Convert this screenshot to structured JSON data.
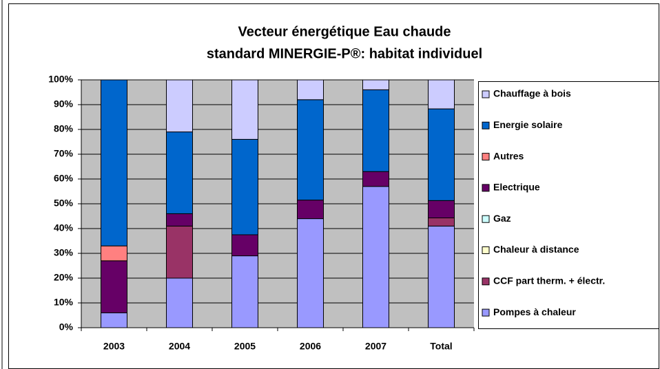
{
  "chart_data": {
    "type": "stacked_bar",
    "title": [
      "Vecteur énergétique Eau chaude",
      "standard MINERGIE-P®: habitat individuel"
    ],
    "categories": [
      "2003",
      "2004",
      "2005",
      "2006",
      "2007",
      "Total"
    ],
    "series": [
      {
        "name": "Pompes à chaleur",
        "color": "#9999ff",
        "values": [
          6,
          20,
          29,
          44,
          57,
          41
        ]
      },
      {
        "name": "CCF part therm. + électr.",
        "color": "#993366",
        "values": [
          0,
          21,
          0,
          0,
          0,
          3.3
        ]
      },
      {
        "name": "Chaleur à distance",
        "color": "#ffffcc",
        "values": [
          0,
          0,
          0,
          0,
          0,
          0
        ]
      },
      {
        "name": "Gaz",
        "color": "#ccffff",
        "values": [
          0,
          0,
          0,
          0,
          0,
          0
        ]
      },
      {
        "name": "Electrique",
        "color": "#660066",
        "values": [
          21,
          5,
          8.5,
          7.5,
          6,
          7
        ]
      },
      {
        "name": "Autres",
        "color": "#ff8080",
        "values": [
          6,
          0,
          0,
          0,
          0,
          0
        ]
      },
      {
        "name": "Energie solaire",
        "color": "#0066cc",
        "values": [
          67,
          33,
          38.5,
          40.5,
          33,
          37
        ]
      },
      {
        "name": "Chauffage à bois",
        "color": "#ccccff",
        "values": [
          0,
          21,
          24,
          8,
          4,
          11.7
        ]
      }
    ],
    "ylim": [
      0,
      100
    ],
    "yticks": [
      {
        "value": 0,
        "label": "0%"
      },
      {
        "value": 10,
        "label": "10%"
      },
      {
        "value": 20,
        "label": "20%"
      },
      {
        "value": 30,
        "label": "30%"
      },
      {
        "value": 40,
        "label": "40%"
      },
      {
        "value": 50,
        "label": "50%"
      },
      {
        "value": 60,
        "label": "60%"
      },
      {
        "value": 70,
        "label": "70%"
      },
      {
        "value": 80,
        "label": "80%"
      },
      {
        "value": 90,
        "label": "90%"
      },
      {
        "value": 100,
        "label": "100%"
      }
    ],
    "grid": true,
    "legend": "right"
  }
}
